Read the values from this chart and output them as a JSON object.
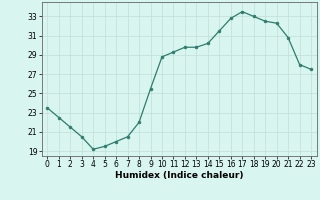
{
  "x": [
    0,
    1,
    2,
    3,
    4,
    5,
    6,
    7,
    8,
    9,
    10,
    11,
    12,
    13,
    14,
    15,
    16,
    17,
    18,
    19,
    20,
    21,
    22,
    23
  ],
  "y": [
    23.5,
    22.5,
    21.5,
    20.5,
    19.2,
    19.5,
    20.0,
    20.5,
    22.0,
    25.5,
    28.8,
    29.3,
    29.8,
    29.8,
    30.2,
    31.5,
    32.8,
    33.5,
    33.0,
    32.5,
    32.3,
    30.8,
    28.0,
    27.5
  ],
  "line_color": "#2e7d6e",
  "marker": "o",
  "marker_size": 2,
  "bg_color": "#d8f5f0",
  "grid_color": "#c0ddd8",
  "xlabel": "Humidex (Indice chaleur)",
  "ylabel": "",
  "ylim": [
    18.5,
    34.5
  ],
  "xlim": [
    -0.5,
    23.5
  ],
  "yticks": [
    19,
    21,
    23,
    25,
    27,
    29,
    31,
    33
  ],
  "xticks": [
    0,
    1,
    2,
    3,
    4,
    5,
    6,
    7,
    8,
    9,
    10,
    11,
    12,
    13,
    14,
    15,
    16,
    17,
    18,
    19,
    20,
    21,
    22,
    23
  ],
  "tick_fontsize": 5.5,
  "xlabel_fontsize": 6.5,
  "spine_color": "#666666"
}
